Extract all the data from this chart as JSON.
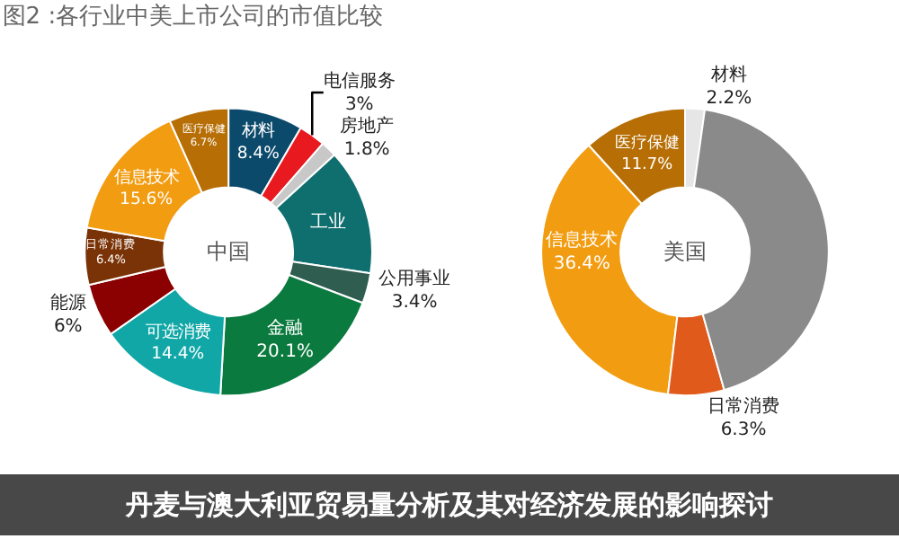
{
  "chart_data": [
    {
      "type": "donut",
      "title": "图2 :各行业中美上市公司的市值比较",
      "categories": [
        "材料",
        "电信服务",
        "房地产",
        "工业",
        "公用事业",
        "金融",
        "可选消费",
        "能源",
        "日常消费",
        "信息技术",
        "医疗保健"
      ],
      "values": [
        8.4,
        3,
        1.8,
        14.2,
        3.4,
        20.1,
        14.4,
        6,
        6.4,
        15.6,
        6.7
      ],
      "value_labels": [
        "8.4%",
        "3%",
        "1.8%",
        null,
        "3.4%",
        "20.1%",
        "14.4%",
        "6%",
        "6.4%",
        "15.6%",
        "6.7%"
      ],
      "colors": [
        "#0b4a6b",
        "#e8191f",
        "#c8c8c8",
        "#0f6e6e",
        "#2f5d50",
        "#0a7a3e",
        "#12a7a7",
        "#8b0000",
        "#7a3306",
        "#f29c11",
        "#b66e05"
      ],
      "annotations": [
        "中国",
        "丹麦与澳大利亚贸易量分析及其对经济发展的影响探讨"
      ],
      "legend": false
    },
    {
      "type": "donut",
      "categories": [
        "材料",
        "医疗保健",
        "信息技术",
        "日常消费",
        null
      ],
      "values": [
        2.2,
        11.7,
        36.4,
        6.3,
        43.4
      ],
      "value_labels": [
        "2.2%",
        "11.7%",
        "36.4%",
        "6.3%",
        null
      ],
      "colors": [
        "#e6e6e6",
        "#b66e05",
        "#f29c11",
        "#e05a1c",
        "#8a8a8a"
      ],
      "annotations": [
        "美国"
      ],
      "legend": false
    }
  ]
}
